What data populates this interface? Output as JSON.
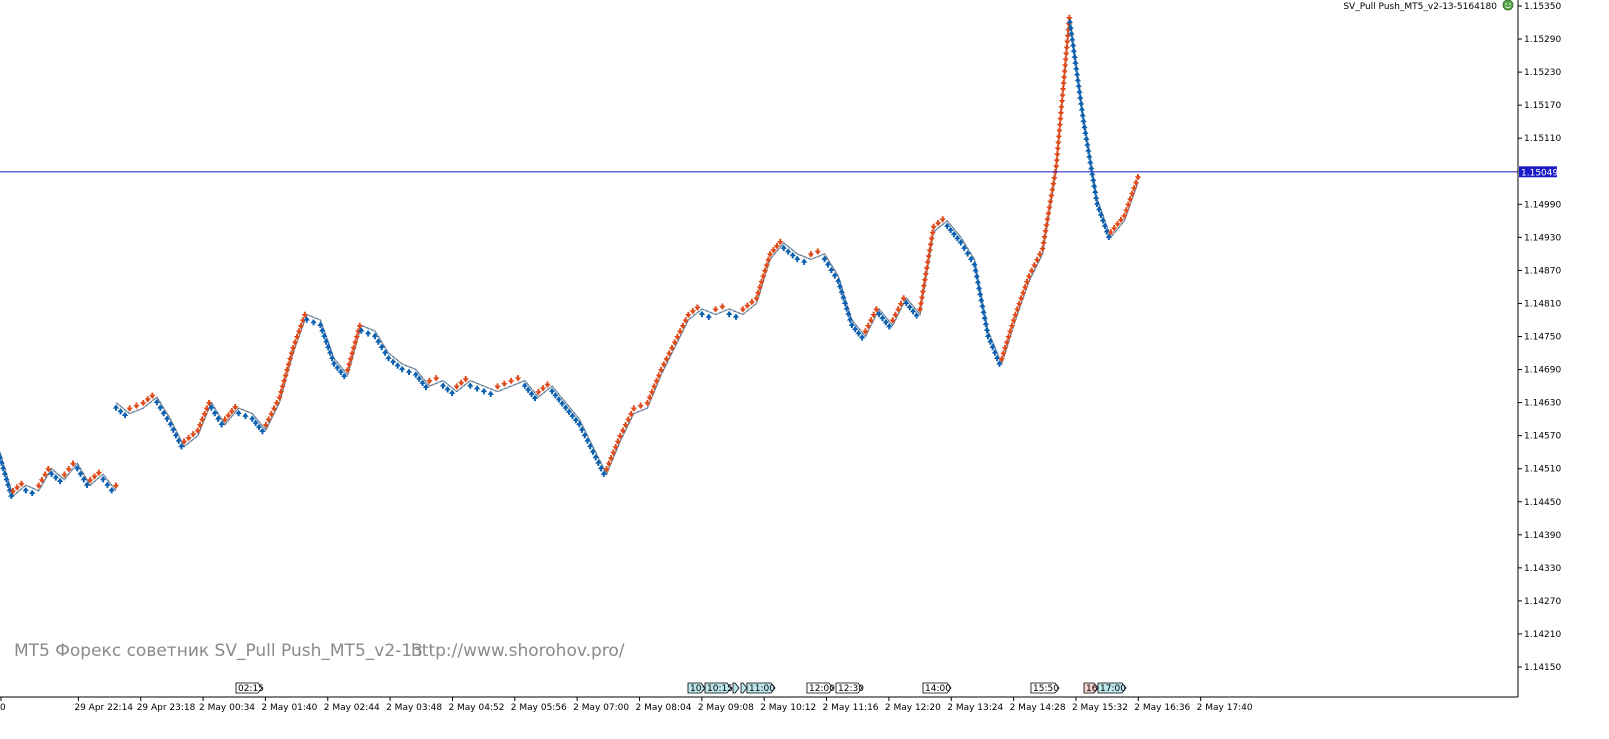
{
  "expert": {
    "title": "SV_Pull Push_MT5_v2-13-5164180",
    "icon": "smiley-icon"
  },
  "watermark": {
    "left_text": "MT5 Форекс советник SV_Pull Push_MT5_v2-13",
    "right_text": "http://www.shorohov.pro/"
  },
  "current_price": {
    "value": 1.15049,
    "label": "1.15049",
    "line_color": "#3333cc"
  },
  "colors": {
    "up_arrow": "#0a5fb0",
    "down_arrow": "#e04a1a",
    "line": "#a0a0a0",
    "axis": "#000000"
  },
  "price_axis": {
    "min": 1.1409,
    "max": 1.1535,
    "ticks": [
      "1.15350",
      "1.15290",
      "1.15230",
      "1.15170",
      "1.15110",
      "1.14990",
      "1.14930",
      "1.14870",
      "1.14810",
      "1.14750",
      "1.14690",
      "1.14630",
      "1.14570",
      "1.14510",
      "1.14450",
      "1.14390",
      "1.14330",
      "1.14270",
      "1.14210",
      "1.14150"
    ]
  },
  "time_axis": {
    "labels": [
      "0",
      "29 Apr 22:14",
      "29 Apr 23:18",
      "2 May 00:34",
      "2 May 01:40",
      "2 May 02:44",
      "2 May 03:48",
      "2 May 04:52",
      "2 May 05:56",
      "2 May 07:00",
      "2 May 08:04",
      "2 May 09:08",
      "2 May 10:12",
      "2 May 11:16",
      "2 May 12:20",
      "2 May 13:24",
      "2 May 14:28",
      "2 May 15:32",
      "2 May 16:36",
      "2 May 17:40"
    ]
  },
  "sessions": [
    {
      "label": "02:15",
      "color": "#ffffff"
    },
    {
      "label": "10:",
      "color": "#bde6ea"
    },
    {
      "label": "10:15",
      "color": "#bde6ea"
    },
    {
      "label": "",
      "color": "#bde6ea"
    },
    {
      "label": "",
      "color": "#bde6ea"
    },
    {
      "label": "11:00",
      "color": "#bde6ea"
    },
    {
      "label": "12:00",
      "color": "#ffffff"
    },
    {
      "label": "12:30",
      "color": "#ffffff"
    },
    {
      "label": "14:00",
      "color": "#ffffff"
    },
    {
      "label": "15:50",
      "color": "#ffffff"
    },
    {
      "label": "16:",
      "color": "#f4d0d0"
    },
    {
      "label": "17:00",
      "color": "#bde6ea"
    }
  ],
  "chart_data": {
    "type": "line",
    "symbol_series": [
      {
        "name": "",
        "values": [
          1.1454,
          1.1446,
          1.1448,
          1.1447,
          1.1451,
          1.1449,
          1.1452,
          1.1448,
          1.145,
          1.1447
        ]
      },
      {
        "name": "",
        "values": [
          1.1463,
          1.1461,
          1.1462,
          1.1464,
          1.146,
          1.1455,
          1.1457,
          1.1463,
          1.1459,
          1.1462,
          1.1461,
          1.1458,
          1.1463,
          1.1472,
          1.1479,
          1.1478,
          1.1471,
          1.1468,
          1.1477,
          1.1476,
          1.1472,
          1.147,
          1.1469,
          1.1466,
          1.1467,
          1.1465,
          1.1467,
          1.1466,
          1.1465,
          1.1466,
          1.1467,
          1.1464,
          1.1466,
          1.1463,
          1.146,
          1.1455,
          1.145,
          1.1456,
          1.1461,
          1.1462,
          1.1468,
          1.1473,
          1.1478,
          1.148,
          1.1479,
          1.148,
          1.1479,
          1.1481,
          1.1489,
          1.1492,
          1.149,
          1.1489,
          1.149,
          1.1486,
          1.1478,
          1.1475,
          1.148,
          1.1477,
          1.1482,
          1.1479,
          1.1494,
          1.1496,
          1.1493,
          1.1489,
          1.1476,
          1.147,
          1.1478,
          1.1485,
          1.149,
          1.1505,
          1.1533,
          1.1515,
          1.15,
          1.1493,
          1.1496,
          1.1503
        ]
      }
    ],
    "xlabel": "",
    "ylabel": "",
    "grid": false
  }
}
